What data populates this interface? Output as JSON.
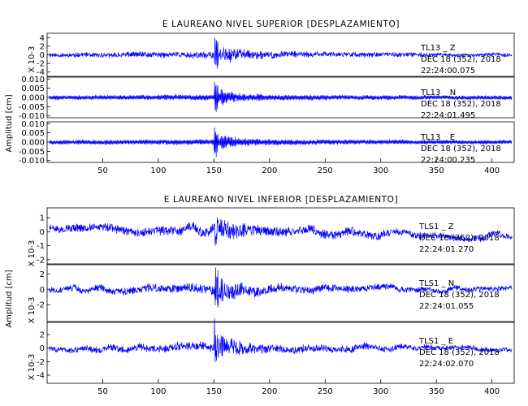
{
  "chart_data": [
    {
      "type": "line",
      "title": "E LAUREANO NIVEL SUPERIOR [DESPLAZAMIENTO]",
      "ylabel": "Amplitud [cm]",
      "xlim": [
        0,
        420
      ],
      "xticks": [
        50,
        100,
        150,
        200,
        250,
        300,
        350,
        400
      ],
      "line_color": "#0000ff",
      "panels": [
        {
          "channel": "TL13 Z",
          "scale_label": "X 10-3",
          "ylim": [
            -5,
            5
          ],
          "yticks": [
            "4",
            "2",
            "0",
            "-2",
            "-4"
          ],
          "ytick_values": [
            4,
            2,
            0,
            -2,
            -4
          ],
          "annotation": [
            "TL13 _ Z",
            "DEC 18 (352), 2018",
            "22:24:00.075"
          ],
          "trace": {
            "seed": 11,
            "base": 0.45,
            "event": 5.0,
            "hf": 0.2,
            "lf": 0.25,
            "trend": 0,
            "coda": 0.03
          }
        },
        {
          "channel": "TL13 N",
          "scale_label": "",
          "ylim": [
            -0.011,
            0.011
          ],
          "yticks": [
            "0.010",
            "0.005",
            "0.000",
            "-0.005",
            "-0.010"
          ],
          "ytick_values": [
            0.01,
            0.005,
            0.0,
            -0.005,
            -0.01
          ],
          "annotation": [
            "TL13 _ N",
            "DEC 18 (352), 2018",
            "22:24:01.495"
          ],
          "trace": {
            "seed": 23,
            "base": 0.0012,
            "event": 0.0095,
            "hf": 0.75,
            "lf": 0.1,
            "trend": 0,
            "coda": 0.012
          }
        },
        {
          "channel": "TL13 E",
          "scale_label": "",
          "ylim": [
            -0.011,
            0.011
          ],
          "yticks": [
            "0.010",
            "0.005",
            "0.000",
            "-0.005",
            "-0.010"
          ],
          "ytick_values": [
            0.01,
            0.005,
            0.0,
            -0.005,
            -0.01
          ],
          "annotation": [
            "TL13 _ E",
            "DEC 18 (352), 2018",
            "22:24:00.235"
          ],
          "trace": {
            "seed": 37,
            "base": 0.0012,
            "event": 0.009,
            "hf": 0.75,
            "lf": 0.1,
            "trend": 0,
            "coda": 0.012
          }
        }
      ]
    },
    {
      "type": "line",
      "title": "E LAUREANO NIVEL INFERIOR [DESPLAZAMIENTO]",
      "ylabel": "Amplitud [cm]",
      "xlim": [
        0,
        420
      ],
      "xticks": [
        50,
        100,
        150,
        200,
        250,
        300,
        350,
        400
      ],
      "line_color": "#0000ff",
      "panels": [
        {
          "channel": "TLS1 Z",
          "scale_label": "X 10-3",
          "ylim": [
            -2.3,
            1.7
          ],
          "yticks": [
            "1",
            "0",
            "-1",
            "-2"
          ],
          "ytick_values": [
            1,
            0,
            -1,
            -2
          ],
          "annotation": [
            "TLS1 _ Z",
            "DEC 18 (352), 2018",
            "22:24:01.270"
          ],
          "trace": {
            "seed": 51,
            "base": 0.25,
            "event": 1.6,
            "hf": 0.15,
            "lf": 0.75,
            "trend": -0.002,
            "coda": 0.02
          }
        },
        {
          "channel": "TLS1 N",
          "scale_label": "X 10-3",
          "ylim": [
            -4.2,
            3.2
          ],
          "yticks": [
            "2",
            "0",
            "-2"
          ],
          "ytick_values": [
            2,
            0,
            -2
          ],
          "annotation": [
            "TLS1 _ N",
            "DEC 18 (352), 2018",
            "22:24:01.055"
          ],
          "trace": {
            "seed": 67,
            "base": 0.35,
            "event": 3.0,
            "hf": 0.2,
            "lf": 0.7,
            "trend": 0,
            "coda": 0.03
          }
        },
        {
          "channel": "TLS1 E",
          "scale_label": "X 10-3",
          "ylim": [
            -5.2,
            3.8
          ],
          "yticks": [
            "2",
            "0",
            "-2",
            "-4"
          ],
          "ytick_values": [
            2,
            0,
            -2,
            -4
          ],
          "annotation": [
            "TLS1 _ E",
            "DEC 18 (352), 2018",
            "22:24:02.070"
          ],
          "trace": {
            "seed": 83,
            "base": 0.4,
            "event": 4.2,
            "hf": 0.25,
            "lf": 0.65,
            "trend": 0,
            "coda": 0.03
          }
        }
      ]
    }
  ]
}
